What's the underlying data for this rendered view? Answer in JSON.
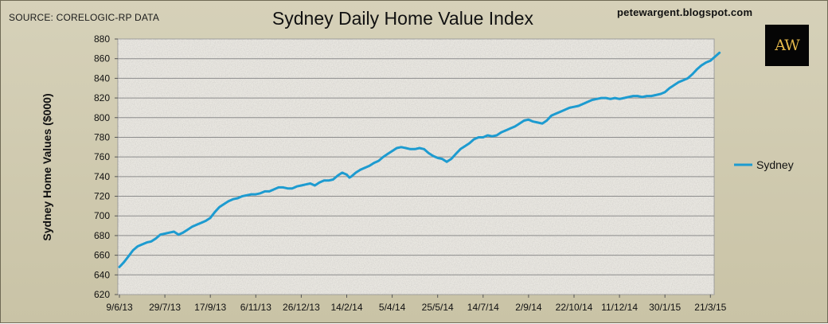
{
  "source_text": "SOURCE: CORELOGIC-RP DATA",
  "blog_text": "petewargent.blogspot.com",
  "logo": {
    "text": "AW",
    "color": "#e4b84a"
  },
  "colors": {
    "line": "#1d9bd0",
    "grid": "#8c8c8c",
    "plot_bg": "#e9e7e1"
  },
  "chart_data": {
    "type": "line",
    "title": "Sydney Daily Home Value Index",
    "xlabel": "",
    "ylabel": "Sydney Home Values ($000)",
    "ylim": [
      620,
      880
    ],
    "yticks": [
      620,
      640,
      660,
      680,
      700,
      720,
      740,
      760,
      780,
      800,
      820,
      840,
      860,
      880
    ],
    "x_tick_labels": [
      "9/6/13",
      "29/7/13",
      "17/9/13",
      "6/11/13",
      "26/12/13",
      "14/2/14",
      "5/4/14",
      "25/5/14",
      "14/7/14",
      "2/9/14",
      "22/10/14",
      "11/12/14",
      "30/1/15",
      "21/3/15"
    ],
    "grid": true,
    "legend_position": "right",
    "series": [
      {
        "name": "Sydney",
        "points": [
          [
            "9/6/13",
            648
          ],
          [
            "14/6/13",
            653
          ],
          [
            "19/6/13",
            659
          ],
          [
            "24/6/13",
            665
          ],
          [
            "29/6/13",
            669
          ],
          [
            "4/7/13",
            671
          ],
          [
            "9/7/13",
            673
          ],
          [
            "14/7/13",
            674
          ],
          [
            "19/7/13",
            677
          ],
          [
            "24/7/13",
            681
          ],
          [
            "29/7/13",
            682
          ],
          [
            "3/8/13",
            683
          ],
          [
            "8/8/13",
            684
          ],
          [
            "13/8/13",
            681
          ],
          [
            "18/8/13",
            683
          ],
          [
            "23/8/13",
            686
          ],
          [
            "28/8/13",
            689
          ],
          [
            "2/9/13",
            691
          ],
          [
            "7/9/13",
            693
          ],
          [
            "12/9/13",
            695
          ],
          [
            "17/9/13",
            698
          ],
          [
            "22/9/13",
            704
          ],
          [
            "27/9/13",
            709
          ],
          [
            "2/10/13",
            712
          ],
          [
            "7/10/13",
            715
          ],
          [
            "12/10/13",
            717
          ],
          [
            "17/10/13",
            718
          ],
          [
            "22/10/13",
            720
          ],
          [
            "27/10/13",
            721
          ],
          [
            "1/11/13",
            722
          ],
          [
            "6/11/13",
            722
          ],
          [
            "11/11/13",
            723
          ],
          [
            "16/11/13",
            725
          ],
          [
            "21/11/13",
            725
          ],
          [
            "26/11/13",
            727
          ],
          [
            "1/12/13",
            729
          ],
          [
            "6/12/13",
            729
          ],
          [
            "11/12/13",
            728
          ],
          [
            "16/12/13",
            728
          ],
          [
            "21/12/13",
            730
          ],
          [
            "26/12/13",
            731
          ],
          [
            "31/12/13",
            732
          ],
          [
            "5/1/14",
            733
          ],
          [
            "10/1/14",
            731
          ],
          [
            "15/1/14",
            734
          ],
          [
            "20/1/14",
            736
          ],
          [
            "25/1/14",
            736
          ],
          [
            "30/1/14",
            737
          ],
          [
            "4/2/14",
            741
          ],
          [
            "9/2/14",
            744
          ],
          [
            "14/2/14",
            742
          ],
          [
            "17/2/14",
            739
          ],
          [
            "19/2/14",
            740
          ],
          [
            "24/2/14",
            744
          ],
          [
            "1/3/14",
            747
          ],
          [
            "6/3/14",
            749
          ],
          [
            "11/3/14",
            751
          ],
          [
            "16/3/14",
            754
          ],
          [
            "21/3/14",
            756
          ],
          [
            "26/3/14",
            760
          ],
          [
            "31/3/14",
            763
          ],
          [
            "5/4/14",
            766
          ],
          [
            "10/4/14",
            769
          ],
          [
            "15/4/14",
            770
          ],
          [
            "20/4/14",
            769
          ],
          [
            "25/4/14",
            768
          ],
          [
            "30/4/14",
            768
          ],
          [
            "5/5/14",
            769
          ],
          [
            "10/5/14",
            768
          ],
          [
            "15/5/14",
            764
          ],
          [
            "20/5/14",
            761
          ],
          [
            "25/5/14",
            759
          ],
          [
            "30/5/14",
            758
          ],
          [
            "4/6/14",
            755
          ],
          [
            "9/6/14",
            758
          ],
          [
            "14/6/14",
            763
          ],
          [
            "19/6/14",
            768
          ],
          [
            "24/6/14",
            771
          ],
          [
            "29/6/14",
            774
          ],
          [
            "4/7/14",
            778
          ],
          [
            "9/7/14",
            780
          ],
          [
            "14/7/14",
            780
          ],
          [
            "19/7/14",
            782
          ],
          [
            "24/7/14",
            781
          ],
          [
            "29/7/14",
            782
          ],
          [
            "3/8/14",
            785
          ],
          [
            "8/8/14",
            787
          ],
          [
            "13/8/14",
            789
          ],
          [
            "18/8/14",
            791
          ],
          [
            "23/8/14",
            794
          ],
          [
            "28/8/14",
            797
          ],
          [
            "2/9/14",
            798
          ],
          [
            "7/9/14",
            796
          ],
          [
            "12/9/14",
            795
          ],
          [
            "17/9/14",
            794
          ],
          [
            "22/9/14",
            797
          ],
          [
            "27/9/14",
            802
          ],
          [
            "2/10/14",
            804
          ],
          [
            "7/10/14",
            806
          ],
          [
            "12/10/14",
            808
          ],
          [
            "17/10/14",
            810
          ],
          [
            "22/10/14",
            811
          ],
          [
            "27/10/14",
            812
          ],
          [
            "1/11/14",
            814
          ],
          [
            "6/11/14",
            816
          ],
          [
            "11/11/14",
            818
          ],
          [
            "16/11/14",
            819
          ],
          [
            "21/11/14",
            820
          ],
          [
            "26/11/14",
            820
          ],
          [
            "1/12/14",
            819
          ],
          [
            "6/12/14",
            820
          ],
          [
            "11/12/14",
            819
          ],
          [
            "16/12/14",
            820
          ],
          [
            "21/12/14",
            821
          ],
          [
            "26/12/14",
            822
          ],
          [
            "31/12/14",
            822
          ],
          [
            "5/1/15",
            821
          ],
          [
            "10/1/15",
            822
          ],
          [
            "15/1/15",
            822
          ],
          [
            "20/1/15",
            823
          ],
          [
            "25/1/15",
            824
          ],
          [
            "30/1/15",
            826
          ],
          [
            "4/2/15",
            830
          ],
          [
            "9/2/15",
            833
          ],
          [
            "14/2/15",
            836
          ],
          [
            "19/2/15",
            838
          ],
          [
            "24/2/15",
            840
          ],
          [
            "1/3/15",
            844
          ],
          [
            "6/3/15",
            849
          ],
          [
            "11/3/15",
            853
          ],
          [
            "16/3/15",
            856
          ],
          [
            "21/3/15",
            858
          ],
          [
            "26/3/15",
            862
          ],
          [
            "31/3/15",
            866
          ]
        ]
      }
    ]
  }
}
